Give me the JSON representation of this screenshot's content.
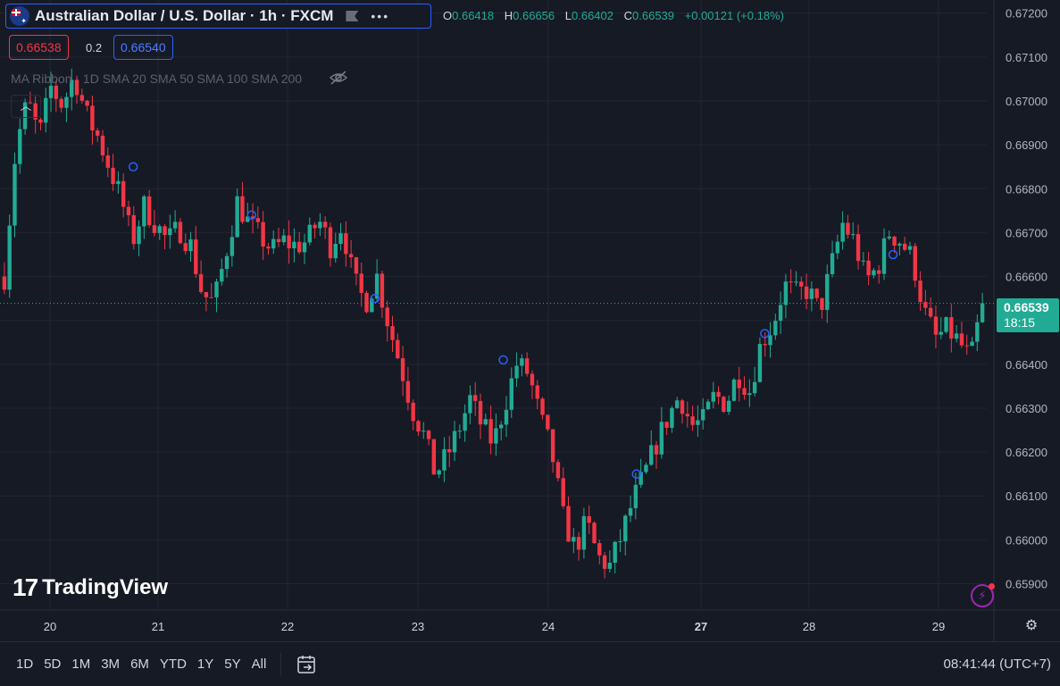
{
  "header": {
    "symbol_title": "Australian Dollar / U.S. Dollar · 1h · FXCM",
    "ohlc": {
      "o_label": "O",
      "o": "0.66418",
      "h_label": "H",
      "h": "0.66656",
      "l_label": "L",
      "l": "0.66402",
      "c_label": "C",
      "c": "0.66539",
      "change": "+0.00121 (+0.18%)"
    },
    "bid": "0.66538",
    "spread": "0.2",
    "ask": "0.66540"
  },
  "indicator": {
    "label": "MA Ribbon · 1D SMA 20 SMA 50 SMA 100 SMA 200"
  },
  "branding": {
    "logo_text": "TradingView",
    "logo_mark": "17"
  },
  "price_label": {
    "price": "0.66539",
    "countdown": "18:15"
  },
  "bottom_bar": {
    "ranges": [
      "1D",
      "5D",
      "1M",
      "3M",
      "6M",
      "YTD",
      "1Y",
      "5Y",
      "All"
    ],
    "clock": "08:41:44 (UTC+7)"
  },
  "colors": {
    "up": "#22ab94",
    "down": "#f23645",
    "background": "#161a25",
    "grid": "#232632"
  },
  "chart_data": {
    "type": "candlestick",
    "title": "Australian Dollar / U.S. Dollar · 1h · FXCM",
    "ylim": [
      0.6584,
      0.6723
    ],
    "y_ticks": [
      "0.67200",
      "0.67100",
      "0.67000",
      "0.66900",
      "0.66800",
      "0.66700",
      "0.66600",
      "0.66500",
      "0.66400",
      "0.66300",
      "0.66200",
      "0.66100",
      "0.66000",
      "0.65900"
    ],
    "x_tick_labels": [
      "20",
      "21",
      "22",
      "23",
      "24",
      "27",
      "28",
      "29"
    ],
    "last_price": 0.66539,
    "path": [
      0.666,
      0.669,
      0.67,
      0.6692,
      0.6703,
      0.6699,
      0.6706,
      0.6697,
      0.6692,
      0.6685,
      0.6678,
      0.6668,
      0.6676,
      0.6672,
      0.6668,
      0.6671,
      0.6667,
      0.6656,
      0.6654,
      0.6665,
      0.6677,
      0.6672,
      0.6669,
      0.6666,
      0.6668,
      0.6667,
      0.6668,
      0.6673,
      0.6667,
      0.6672,
      0.6659,
      0.6654,
      0.666,
      0.6649,
      0.664,
      0.663,
      0.6624,
      0.6615,
      0.6619,
      0.6625,
      0.6632,
      0.6626,
      0.6622,
      0.6631,
      0.664,
      0.6638,
      0.6628,
      0.662,
      0.6605,
      0.6598,
      0.6604,
      0.6596,
      0.6594,
      0.6601,
      0.6609,
      0.6615,
      0.6622,
      0.6628,
      0.6633,
      0.6626,
      0.6627,
      0.6633,
      0.6631,
      0.6638,
      0.6634,
      0.6645,
      0.6649,
      0.6658,
      0.6656,
      0.6657,
      0.6652,
      0.6662,
      0.6672,
      0.6668,
      0.6659,
      0.6662,
      0.667,
      0.6668,
      0.6664,
      0.6652,
      0.6646,
      0.6648,
      0.6645,
      0.6641,
      0.66539
    ],
    "markers": [
      {
        "x": 0.135,
        "y": 0.6685
      },
      {
        "x": 0.255,
        "y": 0.6674
      },
      {
        "x": 0.38,
        "y": 0.6655
      },
      {
        "x": 0.51,
        "y": 0.6641
      },
      {
        "x": 0.645,
        "y": 0.6615
      },
      {
        "x": 0.775,
        "y": 0.6647
      },
      {
        "x": 0.905,
        "y": 0.6665
      }
    ]
  }
}
